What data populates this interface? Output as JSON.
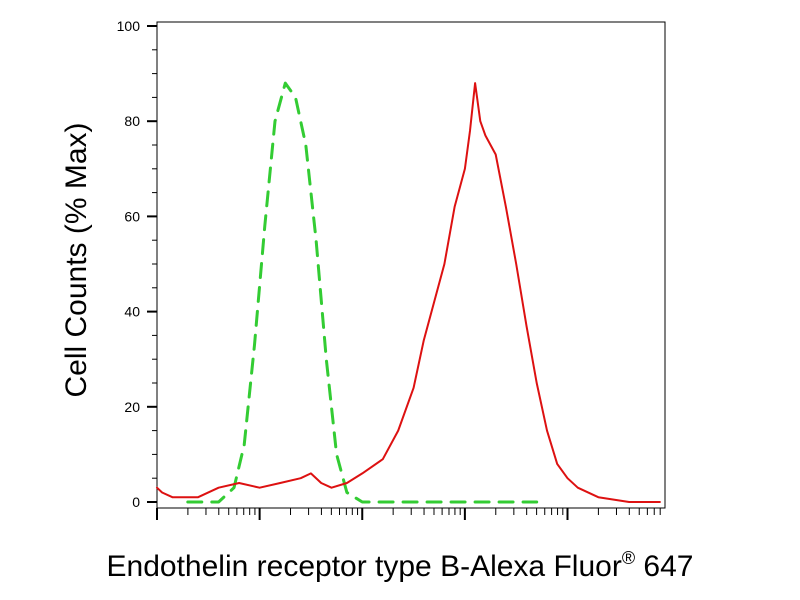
{
  "chart_data": {
    "type": "line",
    "ylabel": "Cell Counts (% Max)",
    "xlabel": "Endothelin receptor type B-Alexa Fluor",
    "xlabel_sup": "®",
    "xlabel_suffix": " 647",
    "x_scale": "log",
    "x_axis_tick_labels": "none",
    "ylim": [
      0,
      100
    ],
    "yticks": [
      0,
      20,
      40,
      60,
      80,
      100
    ],
    "grid": false,
    "legend": "none",
    "series": [
      {
        "color": "#33cc33",
        "style": "dashed",
        "x": [
          0.3,
          0.45,
          0.6,
          0.75,
          0.85,
          0.95,
          1.05,
          1.15,
          1.25,
          1.35,
          1.45,
          1.55,
          1.65,
          1.75,
          1.85,
          2.0,
          2.4,
          2.8,
          3.2,
          3.7
        ],
        "values": [
          0,
          0,
          0,
          3,
          12,
          33,
          58,
          80,
          88,
          85,
          75,
          55,
          30,
          10,
          2,
          0,
          0,
          0,
          0,
          0
        ]
      },
      {
        "color": "#dd1111",
        "style": "solid",
        "x": [
          0.0,
          0.05,
          0.15,
          0.4,
          0.6,
          0.8,
          1.0,
          1.2,
          1.4,
          1.5,
          1.6,
          1.7,
          1.85,
          2.0,
          2.2,
          2.35,
          2.5,
          2.6,
          2.7,
          2.8,
          2.9,
          3.0,
          3.05,
          3.1,
          3.15,
          3.2,
          3.3,
          3.4,
          3.5,
          3.6,
          3.7,
          3.8,
          3.9,
          4.0,
          4.1,
          4.3,
          4.6,
          4.9
        ],
        "values": [
          3,
          2,
          1,
          1,
          3,
          4,
          3,
          4,
          5,
          6,
          4,
          3,
          4,
          6,
          9,
          15,
          24,
          34,
          42,
          50,
          62,
          70,
          78,
          88,
          80,
          77,
          73,
          62,
          50,
          37,
          25,
          15,
          8,
          5,
          3,
          1,
          0,
          0
        ]
      }
    ]
  }
}
